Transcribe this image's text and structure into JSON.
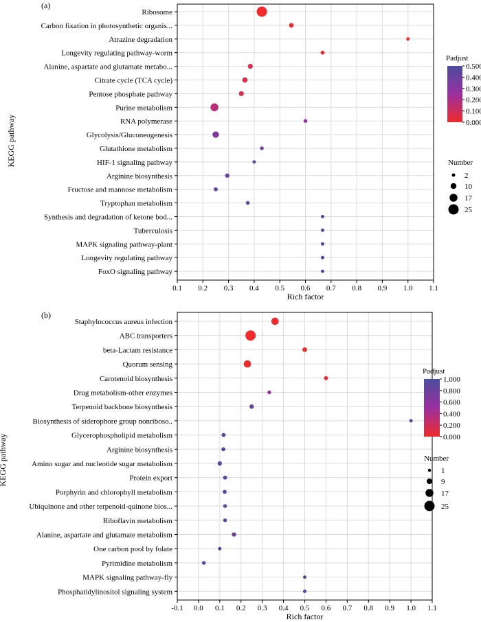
{
  "chart_data": [
    {
      "type": "scatter",
      "panel_label": "(a)",
      "xlabel": "Rich factor",
      "ylabel": "KEGG pathway",
      "xlim": [
        0.1,
        1.1
      ],
      "xticks": [
        "0.1",
        "0.2",
        "0.3",
        "0.4",
        "0.5",
        "0.6",
        "0.7",
        "0.8",
        "0.9",
        "1.0",
        "1.1"
      ],
      "grid": true,
      "color_legend": {
        "title": "Padjust",
        "min": 0.0,
        "max": 0.5,
        "ticks": [
          "0.500",
          "0.400",
          "0.300",
          "0.200",
          "0.100",
          "0.000"
        ],
        "low_color": "#ee2c2c",
        "mid_color": "#9b2fa0",
        "high_color": "#4b4d9e"
      },
      "size_legend": {
        "title": "Number",
        "items": [
          "2",
          "10",
          "17",
          "25"
        ]
      },
      "categories": [
        "Ribosome",
        "Carbon fixation in photosynthetic organis...",
        "Atrazine degradation",
        "Longevity regulating pathway-worm",
        "Alanine, aspartate and glutamate metabo...",
        "Citrate cycle (TCA cycle)",
        "Pentose phosphate pathway",
        "Purine metabolism",
        "RNA polymerase",
        "Glycolysis/Gluconeogenesis",
        "Glutathione metabolism",
        "HIF-1 signaling pathway",
        "Arginine biosynthesis",
        "Fructose and mannose metabolism",
        "Tryptophan metabolism",
        "Synthesis and degradation of ketone bod...",
        "Tuberculosis",
        "MAPK signaling pathway-plant",
        "Longevity regulating pathway",
        "FoxO signaling pathway"
      ],
      "points": [
        {
          "x": 0.43,
          "number": 25,
          "padjust": 0.0
        },
        {
          "x": 0.545,
          "number": 6,
          "padjust": 0.02
        },
        {
          "x": 1.0,
          "number": 2,
          "padjust": 0.0
        },
        {
          "x": 0.667,
          "number": 4,
          "padjust": 0.03
        },
        {
          "x": 0.385,
          "number": 7,
          "padjust": 0.06
        },
        {
          "x": 0.364,
          "number": 8,
          "padjust": 0.06
        },
        {
          "x": 0.35,
          "number": 7,
          "padjust": 0.07
        },
        {
          "x": 0.245,
          "number": 17,
          "padjust": 0.16
        },
        {
          "x": 0.6,
          "number": 3,
          "padjust": 0.27
        },
        {
          "x": 0.25,
          "number": 12,
          "padjust": 0.33
        },
        {
          "x": 0.43,
          "number": 3,
          "padjust": 0.38
        },
        {
          "x": 0.4,
          "number": 2,
          "padjust": 0.43
        },
        {
          "x": 0.295,
          "number": 5,
          "padjust": 0.4
        },
        {
          "x": 0.25,
          "number": 4,
          "padjust": 0.43
        },
        {
          "x": 0.375,
          "number": 3,
          "padjust": 0.45
        },
        {
          "x": 0.667,
          "number": 2,
          "padjust": 0.46
        },
        {
          "x": 0.667,
          "number": 2,
          "padjust": 0.47
        },
        {
          "x": 0.667,
          "number": 2,
          "padjust": 0.47
        },
        {
          "x": 0.667,
          "number": 2,
          "padjust": 0.47
        },
        {
          "x": 0.667,
          "number": 2,
          "padjust": 0.48
        }
      ]
    },
    {
      "type": "scatter",
      "panel_label": "(b)",
      "xlabel": "Rich factor",
      "ylabel": "KEGG pathway",
      "xlim": [
        -0.1,
        1.1
      ],
      "xticks": [
        "-0.1",
        "0.0",
        "0.1",
        "0.2",
        "0.3",
        "0.4",
        "0.5",
        "0.6",
        "0.7",
        "0.8",
        "0.9",
        "1.0",
        "1.1"
      ],
      "grid": true,
      "color_legend": {
        "title": "Padjust",
        "min": 0.0,
        "max": 1.0,
        "ticks": [
          "1.000",
          "0.800",
          "0.600",
          "0.400",
          "0.200",
          "0.000"
        ],
        "low_color": "#ee2c2c",
        "mid_color": "#9b2fa0",
        "high_color": "#4b4d9e"
      },
      "size_legend": {
        "title": "Number",
        "items": [
          "1",
          "9",
          "17",
          "25"
        ]
      },
      "categories": [
        "Staphylococcus aureus infection",
        "ABC transporters",
        "beta-Lactam resistance",
        "Quorum sensing",
        "Carotenoid biosynthesis",
        "Drug metabolism-other enzymes",
        "Terpenoid backbone biosynthesis",
        "Biosynthesis of siderophore group nonriboso..",
        "Glycerophospholipid metabolism",
        "Arginine biosynthesis",
        "Amino sugar and nucleotide sugar metabolism",
        "Protein export",
        "Porphyrin and chlorophyll metabolism",
        "Ubiquinone and other terpenoid-quinone bios...",
        "Riboflavin metabolism",
        "Alanine, aspartate and glutamate metabolism",
        "One carbon pool by folate",
        "Pyrimidine metabolism",
        "MAPK signaling pathway-fly",
        "Phosphatidylinositol signaling system"
      ],
      "points": [
        {
          "x": 0.36,
          "number": 15,
          "padjust": 0.0
        },
        {
          "x": 0.245,
          "number": 25,
          "padjust": 0.0
        },
        {
          "x": 0.5,
          "number": 6,
          "padjust": 0.0
        },
        {
          "x": 0.23,
          "number": 15,
          "padjust": 0.02
        },
        {
          "x": 0.6,
          "number": 4,
          "padjust": 0.05
        },
        {
          "x": 0.333,
          "number": 3,
          "padjust": 0.55
        },
        {
          "x": 0.25,
          "number": 5,
          "padjust": 0.85
        },
        {
          "x": 1.0,
          "number": 2,
          "padjust": 0.9
        },
        {
          "x": 0.118,
          "number": 4,
          "padjust": 0.9
        },
        {
          "x": 0.117,
          "number": 4,
          "padjust": 0.9
        },
        {
          "x": 0.1,
          "number": 5,
          "padjust": 0.92
        },
        {
          "x": 0.125,
          "number": 4,
          "padjust": 0.92
        },
        {
          "x": 0.123,
          "number": 4,
          "padjust": 0.92
        },
        {
          "x": 0.125,
          "number": 3,
          "padjust": 0.93
        },
        {
          "x": 0.125,
          "number": 3,
          "padjust": 0.93
        },
        {
          "x": 0.167,
          "number": 5,
          "padjust": 0.8
        },
        {
          "x": 0.1,
          "number": 2,
          "padjust": 0.95
        },
        {
          "x": 0.025,
          "number": 3,
          "padjust": 0.95
        },
        {
          "x": 0.5,
          "number": 2,
          "padjust": 0.96
        },
        {
          "x": 0.5,
          "number": 2,
          "padjust": 0.96
        }
      ]
    }
  ]
}
